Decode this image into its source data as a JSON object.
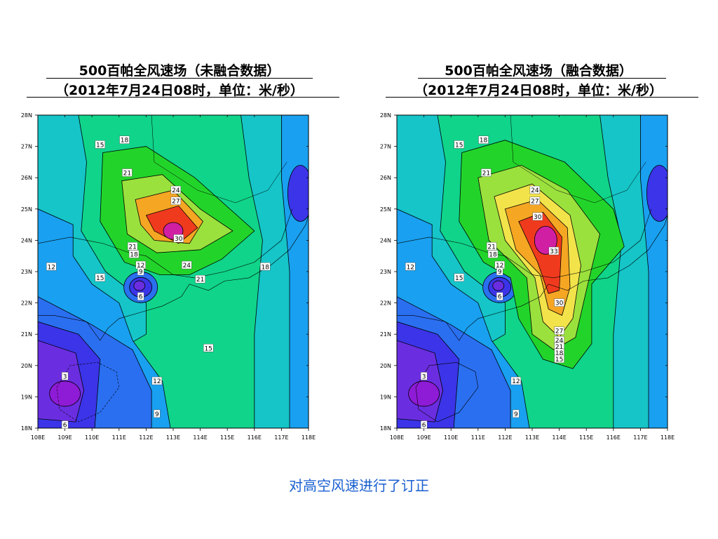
{
  "left_panel": {
    "title_line1": "500百帕全风速场（未融合数据）",
    "title_line2": "（2012年7月24日08时，单位：米/秒）",
    "contour_labels": [
      {
        "text": "18",
        "lon": 111.2,
        "lat": 27.2
      },
      {
        "text": "15",
        "lon": 110.3,
        "lat": 27.05
      },
      {
        "text": "21",
        "lon": 111.3,
        "lat": 26.15
      },
      {
        "text": "24",
        "lon": 113.1,
        "lat": 25.6
      },
      {
        "text": "27",
        "lon": 113.1,
        "lat": 25.25
      },
      {
        "text": "30",
        "lon": 113.2,
        "lat": 24.05
      },
      {
        "text": "21",
        "lon": 111.5,
        "lat": 23.8
      },
      {
        "text": "18",
        "lon": 111.55,
        "lat": 23.55
      },
      {
        "text": "12",
        "lon": 111.8,
        "lat": 23.2
      },
      {
        "text": "9",
        "lon": 111.8,
        "lat": 23.0
      },
      {
        "text": "24",
        "lon": 113.5,
        "lat": 23.2
      },
      {
        "text": "12",
        "lon": 108.5,
        "lat": 23.15
      },
      {
        "text": "15",
        "lon": 110.3,
        "lat": 22.8
      },
      {
        "text": "18",
        "lon": 116.4,
        "lat": 23.15
      },
      {
        "text": "21",
        "lon": 114.0,
        "lat": 22.75
      },
      {
        "text": "6",
        "lon": 111.8,
        "lat": 22.2
      },
      {
        "text": "15",
        "lon": 114.3,
        "lat": 20.55
      },
      {
        "text": "3",
        "lon": 109.0,
        "lat": 19.65
      },
      {
        "text": "12",
        "lon": 112.4,
        "lat": 19.5
      },
      {
        "text": "9",
        "lon": 112.4,
        "lat": 18.45
      },
      {
        "text": "6",
        "lon": 109.0,
        "lat": 18.1
      }
    ]
  },
  "right_panel": {
    "title_line1": "500百帕全风速场（融合数据）",
    "title_line2": "（2012年7月24日08时，单位：米/秒）",
    "contour_labels": [
      {
        "text": "18",
        "lon": 111.2,
        "lat": 27.2
      },
      {
        "text": "15",
        "lon": 110.3,
        "lat": 27.05
      },
      {
        "text": "21",
        "lon": 111.3,
        "lat": 26.15
      },
      {
        "text": "24",
        "lon": 113.1,
        "lat": 25.6
      },
      {
        "text": "27",
        "lon": 113.1,
        "lat": 25.25
      },
      {
        "text": "30",
        "lon": 113.2,
        "lat": 24.75
      },
      {
        "text": "33",
        "lon": 113.8,
        "lat": 23.65
      },
      {
        "text": "21",
        "lon": 111.5,
        "lat": 23.8
      },
      {
        "text": "18",
        "lon": 111.55,
        "lat": 23.55
      },
      {
        "text": "12",
        "lon": 111.8,
        "lat": 23.2
      },
      {
        "text": "9",
        "lon": 111.8,
        "lat": 23.0
      },
      {
        "text": "12",
        "lon": 108.5,
        "lat": 23.15
      },
      {
        "text": "15",
        "lon": 110.3,
        "lat": 22.8
      },
      {
        "text": "6",
        "lon": 111.8,
        "lat": 22.2
      },
      {
        "text": "30",
        "lon": 114.0,
        "lat": 22.0
      },
      {
        "text": "27",
        "lon": 114.0,
        "lat": 21.1
      },
      {
        "text": "24",
        "lon": 114.0,
        "lat": 20.8
      },
      {
        "text": "21",
        "lon": 114.0,
        "lat": 20.6
      },
      {
        "text": "18",
        "lon": 114.0,
        "lat": 20.4
      },
      {
        "text": "15",
        "lon": 114.0,
        "lat": 20.2
      },
      {
        "text": "3",
        "lon": 109.0,
        "lat": 19.65
      },
      {
        "text": "12",
        "lon": 112.4,
        "lat": 19.5
      },
      {
        "text": "9",
        "lon": 112.4,
        "lat": 18.45
      },
      {
        "text": "6",
        "lon": 109.0,
        "lat": 18.1
      }
    ]
  },
  "axes": {
    "lon_ticks": [
      "108E",
      "109E",
      "110E",
      "111E",
      "112E",
      "113E",
      "114E",
      "115E",
      "116E",
      "117E",
      "118E"
    ],
    "lat_ticks": [
      "18N",
      "19N",
      "20N",
      "21N",
      "22N",
      "23N",
      "24N",
      "25N",
      "26N",
      "27N",
      "28N"
    ],
    "lon_range": [
      108,
      118
    ],
    "lat_range": [
      18,
      28
    ]
  },
  "colors": {
    "c0": "#8e1bd6",
    "c3": "#6a2ee0",
    "c6": "#3b34e8",
    "c9": "#2a6ff0",
    "c12": "#19a0f0",
    "c15": "#15c5c8",
    "c18": "#10d48a",
    "c21": "#22d42a",
    "c24": "#9be13d",
    "c27": "#f2e34a",
    "c30": "#f5a623",
    "c33": "#f57c2a",
    "c36": "#f03a1e",
    "c39": "#d11fa4"
  },
  "caption": "对高空风速进行了订正"
}
